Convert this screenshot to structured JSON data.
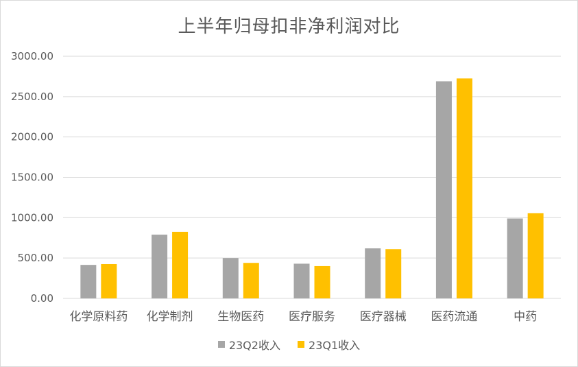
{
  "chart_data": {
    "type": "bar",
    "title": "上半年归母扣非净利润对比",
    "categories": [
      "化学原料药",
      "化学制剂",
      "生物医药",
      "医疗服务",
      "医疗器械",
      "医药流通",
      "中药"
    ],
    "series": [
      {
        "name": "23Q2收入",
        "color": "#a6a6a6",
        "values": [
          415,
          790,
          500,
          430,
          620,
          2690,
          990
        ]
      },
      {
        "name": "23Q1收入",
        "color": "#ffc000",
        "values": [
          425,
          825,
          440,
          400,
          610,
          2725,
          1055
        ]
      }
    ],
    "yticks": [
      "0.00",
      "500.00",
      "1000.00",
      "1500.00",
      "2000.00",
      "2500.00",
      "3000.00"
    ],
    "ylim": [
      0,
      3000
    ],
    "grid": true,
    "legend_position": "bottom"
  }
}
